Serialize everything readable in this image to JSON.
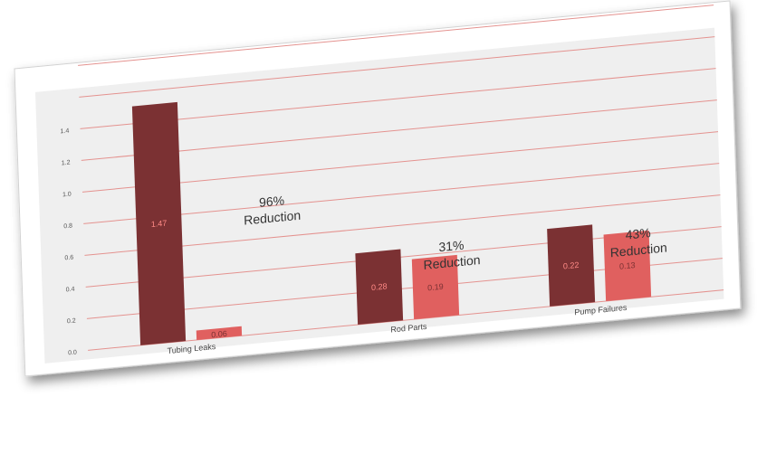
{
  "chart_data": {
    "type": "bar",
    "categories": [
      "Tubing Leaks",
      "Rod Parts",
      "Pump Failures"
    ],
    "series": [
      {
        "values": [
          1.47,
          0.28,
          0.22
        ],
        "color": "#7b3133"
      },
      {
        "values": [
          0.06,
          0.19,
          0.13
        ],
        "color": "#e0605f"
      }
    ],
    "bar_heights_axis_units": [
      [
        1.51,
        0.45,
        0.49
      ],
      [
        0.06,
        0.38,
        0.42
      ]
    ],
    "ylim": [
      0,
      1.6
    ],
    "yticks": [
      "0.0",
      "0.2",
      "0.4",
      "0.6",
      "0.8",
      "1.0",
      "1.2",
      "1.4"
    ],
    "grid": true,
    "gridline_color": "#e4928f",
    "plot_background": "#efefef",
    "annotations": [
      {
        "category": "Tubing Leaks",
        "lines": [
          "96%",
          "Reduction"
        ]
      },
      {
        "category": "Rod Parts",
        "lines": [
          "31%",
          "Reduction"
        ]
      },
      {
        "category": "Pump Failures",
        "lines": [
          "43%",
          "Reduction"
        ]
      }
    ],
    "title": "",
    "xlabel": "",
    "ylabel": ""
  }
}
